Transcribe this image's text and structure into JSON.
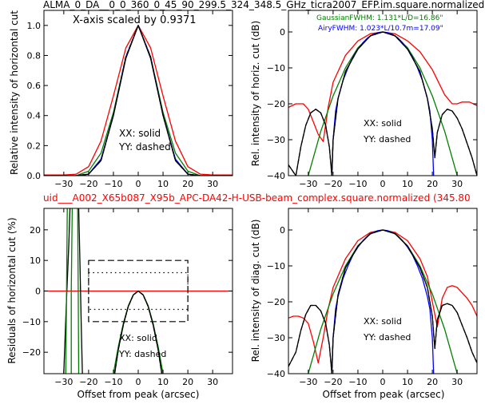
{
  "figure": {
    "top_title": "ALMA_0_DA__0_0_360_0_45_90_299.5_324_348.5_GHz_ticra2007_EFP.im.square.normalized",
    "mid_title": "uid___A002_X65b087_X95b_APC-DA42-H-USB-beam_complex.square.normalized (345.80",
    "top_title_color": "#000000",
    "mid_title_color": "#ff0000"
  },
  "colors": {
    "red": "#ff0000",
    "green": "#008000",
    "blue": "#0000ff",
    "black": "#000000"
  },
  "chart_data": [
    {
      "id": "p1",
      "type": "line",
      "xlabel": "",
      "ylabel": "Relative intensity of horizontal cut",
      "xlim": [
        -38,
        38
      ],
      "ylim": [
        0,
        1.1
      ],
      "xticks": [
        -30,
        -20,
        -10,
        0,
        10,
        20,
        30
      ],
      "yticks": [
        0.0,
        0.2,
        0.4,
        0.6,
        0.8,
        1.0
      ],
      "ytick_labels": [
        "0.0",
        "0.2",
        "0.4",
        "0.6",
        "0.8",
        "1.0"
      ],
      "show_xtick_labels": true,
      "annotation": "X-axis scaled by 0.9371",
      "legend_text": [
        "XX: solid",
        "YY: dashed"
      ],
      "series": [
        {
          "color": "red",
          "x": [
            -38,
            -30,
            -25,
            -20,
            -15,
            -10,
            -5,
            0,
            5,
            10,
            15,
            20,
            25,
            30,
            38
          ],
          "y": [
            0.005,
            0.005,
            0.01,
            0.06,
            0.23,
            0.53,
            0.85,
            1.0,
            0.85,
            0.53,
            0.23,
            0.06,
            0.01,
            0.005,
            0.005
          ]
        },
        {
          "color": "green",
          "x": [
            -38,
            -25,
            -20,
            -15,
            -10,
            -5,
            0,
            5,
            10,
            15,
            20,
            25,
            38
          ],
          "y": [
            0.0,
            0.0,
            0.03,
            0.15,
            0.42,
            0.79,
            1.0,
            0.79,
            0.42,
            0.15,
            0.03,
            0.0,
            0.0
          ]
        },
        {
          "color": "blue",
          "x": [
            -38,
            -25,
            -20,
            -15,
            -10,
            -5,
            0,
            5,
            10,
            15,
            20,
            25,
            38
          ],
          "y": [
            0.0,
            0.0,
            0.01,
            0.11,
            0.4,
            0.79,
            1.0,
            0.79,
            0.4,
            0.11,
            0.01,
            0.0,
            0.0
          ]
        },
        {
          "color": "black",
          "x": [
            -38,
            -25,
            -20,
            -15,
            -10,
            -5,
            0,
            5,
            10,
            15,
            20,
            25,
            38
          ],
          "y": [
            0.0,
            0.0,
            0.01,
            0.1,
            0.4,
            0.78,
            1.0,
            0.78,
            0.4,
            0.1,
            0.01,
            0.0,
            0.0
          ]
        },
        {
          "color": "black",
          "dash": true,
          "x": [
            -38,
            -25,
            -20,
            -15,
            -10,
            -5,
            0,
            5,
            10,
            15,
            20,
            25,
            38
          ],
          "y": [
            0.0,
            0.0,
            0.01,
            0.1,
            0.4,
            0.79,
            1.0,
            0.79,
            0.4,
            0.1,
            0.01,
            0.0,
            0.0
          ]
        }
      ]
    },
    {
      "id": "p2",
      "type": "line",
      "xlabel": "",
      "ylabel": "Rel. intensity of horiz. cut (dB)",
      "xlim": [
        -38,
        38
      ],
      "ylim": [
        -40,
        6
      ],
      "xticks": [
        -30,
        -20,
        -10,
        0,
        10,
        20,
        30
      ],
      "yticks": [
        0,
        -10,
        -20,
        -30,
        -40
      ],
      "ytick_labels": [
        "0",
        "−10",
        "−20",
        "−30",
        "−40"
      ],
      "show_xtick_labels": true,
      "fwhm_labels": [
        {
          "text": "GaussianFWHM: 1.131*L/D=16.86\"",
          "color": "green"
        },
        {
          "text": "AiryFWHM: 1.023*L/10.7m=17.09\"",
          "color": "blue"
        }
      ],
      "legend_text": [
        "XX: solid",
        "YY: dashed"
      ],
      "series": [
        {
          "color": "red",
          "x": [
            -38,
            -35,
            -32,
            -30,
            -28,
            -26,
            -24,
            -22,
            -20,
            -15,
            -10,
            -5,
            0,
            5,
            10,
            15,
            20,
            25,
            28,
            30,
            32,
            35,
            38
          ],
          "y": [
            -21,
            -20,
            -20,
            -21.5,
            -25,
            -28.5,
            -30.5,
            -21,
            -14,
            -6.5,
            -2.5,
            -0.5,
            0,
            -0.5,
            -2.5,
            -5.5,
            -10.5,
            -17.5,
            -20,
            -20,
            -19.5,
            -19.5,
            -20.5
          ]
        },
        {
          "color": "green",
          "x": [
            -30,
            -25,
            -20,
            -15,
            -10,
            -5,
            0,
            5,
            10,
            15,
            20,
            25,
            30
          ],
          "y": [
            -40,
            -27.7,
            -17.8,
            -10,
            -4.4,
            -1.1,
            0,
            -1.1,
            -4.4,
            -10,
            -17.8,
            -27.7,
            -40
          ]
        },
        {
          "color": "blue",
          "x": [
            -20.5,
            -20,
            -19,
            -18,
            -16,
            -14,
            -12,
            -10,
            -8,
            -6,
            -4,
            -2,
            0,
            2,
            4,
            6,
            8,
            10,
            12,
            14,
            16,
            18,
            19,
            20,
            20.5
          ],
          "y": [
            -40,
            -30,
            -22,
            -18.5,
            -13.5,
            -10,
            -7,
            -4.8,
            -3,
            -1.6,
            -0.7,
            -0.2,
            0,
            -0.2,
            -0.7,
            -1.6,
            -3,
            -4.8,
            -7,
            -10,
            -13.5,
            -18.5,
            -22,
            -30,
            -40
          ]
        },
        {
          "color": "black",
          "x": [
            -38,
            -35,
            -33,
            -31,
            -29,
            -27,
            -25,
            -23,
            -21.5,
            -20.5,
            -20,
            -18,
            -15,
            -10,
            -5,
            0,
            5,
            10,
            15,
            18,
            20,
            21,
            22,
            24,
            26,
            28,
            30,
            32,
            34,
            36,
            38
          ],
          "y": [
            -37,
            -40,
            -32,
            -26,
            -22.5,
            -21.5,
            -22.5,
            -26,
            -32,
            -40,
            -30,
            -18.5,
            -11,
            -4.8,
            -1.1,
            0,
            -1.1,
            -4.8,
            -11,
            -18.5,
            -27,
            -35,
            -28,
            -23,
            -21.5,
            -22,
            -24,
            -27,
            -31,
            -35,
            -40
          ]
        },
        {
          "color": "black",
          "dash": true,
          "x": [
            -38,
            -35,
            -33,
            -31,
            -29,
            -27,
            -25,
            -23,
            -21.5,
            -20.5,
            -20,
            -18,
            -15,
            -10,
            -5,
            0,
            5,
            10,
            15,
            18,
            20,
            21,
            22,
            24,
            26,
            28,
            30,
            32,
            34,
            36,
            38
          ],
          "y": [
            -37,
            -40,
            -32,
            -26,
            -22.5,
            -21.5,
            -22.5,
            -26,
            -32,
            -40,
            -30,
            -18.5,
            -11,
            -4.8,
            -1.1,
            0,
            -1.1,
            -4.8,
            -11,
            -18.5,
            -27,
            -35,
            -28,
            -23,
            -21.5,
            -22,
            -24,
            -27,
            -31,
            -35,
            -40
          ]
        }
      ]
    },
    {
      "id": "p3",
      "type": "line",
      "xlabel": "Offset from peak (arcsec)",
      "ylabel": "Residuals of horizontal cut (%)",
      "xlim": [
        -38,
        38
      ],
      "ylim": [
        -27,
        27
      ],
      "xticks": [
        -30,
        -20,
        -10,
        0,
        10,
        20,
        30
      ],
      "yticks": [
        20,
        10,
        0,
        -10,
        -20
      ],
      "ytick_labels": [
        "20",
        "10",
        "0",
        "−10",
        "−20"
      ],
      "show_xtick_labels": true,
      "legend_text": [
        "XX: solid",
        "YY: dashed"
      ],
      "zero_line_color": "red",
      "dashed_box": {
        "x": [
          -20,
          20
        ],
        "y": [
          -10,
          10
        ]
      },
      "dotted_box": {
        "x": [
          -20,
          20
        ],
        "y": [
          -6,
          6
        ]
      },
      "series": [
        {
          "color": "black",
          "x": [
            -30,
            -29,
            -28,
            -27.5
          ],
          "y": [
            -27,
            -5,
            15,
            27
          ]
        },
        {
          "color": "black",
          "x": [
            -24,
            -23.5,
            -23,
            -22.5
          ],
          "y": [
            27,
            10,
            -10,
            -27
          ]
        },
        {
          "color": "green",
          "x": [
            -29.2,
            -28.9,
            -28.6
          ],
          "y": [
            -27,
            0,
            27
          ]
        },
        {
          "color": "green",
          "x": [
            -27,
            -27,
            -26.6
          ],
          "y": [
            -27,
            0,
            27
          ]
        },
        {
          "color": "green",
          "x": [
            -24.4,
            -24.2,
            -24
          ],
          "y": [
            27,
            0,
            -27
          ]
        },
        {
          "color": "green",
          "x": [
            -10,
            -8,
            -6,
            -4,
            -2,
            0,
            2,
            4,
            6,
            8,
            10
          ],
          "y": [
            -27,
            -18,
            -10.5,
            -4.8,
            -1.2,
            0,
            -1.2,
            -4.8,
            -10.5,
            -18,
            -27
          ]
        },
        {
          "color": "black",
          "x": [
            -9.5,
            -8,
            -6,
            -4,
            -2,
            0,
            2,
            4,
            6,
            8,
            9.5
          ],
          "y": [
            -27,
            -19,
            -11,
            -5,
            -1.3,
            0,
            -1.3,
            -5,
            -11,
            -19,
            -27
          ]
        },
        {
          "color": "black",
          "dash": true,
          "x": [
            -9.5,
            -8,
            -6,
            -4,
            -2,
            0,
            2,
            4,
            6,
            8,
            9.5
          ],
          "y": [
            -27,
            -19,
            -11,
            -5,
            -1.3,
            0,
            -1.3,
            -5,
            -11,
            -19,
            -27
          ]
        }
      ]
    },
    {
      "id": "p4",
      "type": "line",
      "xlabel": "Offset from peak (arcsec)",
      "ylabel": "Rel. intensity of diag. cut (dB)",
      "xlim": [
        -38,
        38
      ],
      "ylim": [
        -40,
        6
      ],
      "xticks": [
        -30,
        -20,
        -10,
        0,
        10,
        20,
        30
      ],
      "yticks": [
        0,
        -10,
        -20,
        -30,
        -40
      ],
      "ytick_labels": [
        "0",
        "−10",
        "−20",
        "−30",
        "−40"
      ],
      "show_xtick_labels": true,
      "legend_text": [
        "XX: solid",
        "YY: dashed"
      ],
      "series": [
        {
          "color": "red",
          "x": [
            -38,
            -36,
            -34,
            -32,
            -30,
            -28,
            -26,
            -24,
            -22,
            -20,
            -15,
            -10,
            -5,
            0,
            5,
            10,
            15,
            18,
            20,
            22,
            24,
            26,
            28,
            30,
            32,
            34,
            36,
            38
          ],
          "y": [
            -24.5,
            -24,
            -24,
            -24.5,
            -26,
            -31,
            -37,
            -30,
            -22,
            -16,
            -8,
            -3,
            -0.7,
            0,
            -0.7,
            -3,
            -8,
            -13,
            -20,
            -27,
            -19,
            -16,
            -15.5,
            -16,
            -17.5,
            -19,
            -21,
            -24
          ]
        },
        {
          "color": "green",
          "x": [
            -30,
            -25,
            -20,
            -15,
            -10,
            -5,
            0,
            5,
            10,
            15,
            20,
            25,
            30
          ],
          "y": [
            -40,
            -27.7,
            -17.8,
            -10,
            -4.4,
            -1.1,
            0,
            -1.1,
            -4.4,
            -10,
            -17.8,
            -27.7,
            -40
          ]
        },
        {
          "color": "blue",
          "x": [
            -20.5,
            -20,
            -19,
            -18,
            -16,
            -14,
            -12,
            -10,
            -8,
            -6,
            -4,
            -2,
            0,
            2,
            4,
            6,
            8,
            10,
            12,
            14,
            16,
            18,
            19,
            20,
            20.5
          ],
          "y": [
            -40,
            -30,
            -22,
            -18.5,
            -13.5,
            -10,
            -7,
            -4.8,
            -3,
            -1.6,
            -0.7,
            -0.2,
            0,
            -0.2,
            -0.7,
            -1.6,
            -3,
            -4.8,
            -7,
            -10,
            -13.5,
            -18.5,
            -22,
            -30,
            -40
          ]
        },
        {
          "color": "black",
          "x": [
            -38,
            -35,
            -33,
            -31,
            -29,
            -27,
            -25,
            -23,
            -21.5,
            -20.5,
            -20,
            -18,
            -15,
            -10,
            -5,
            0,
            5,
            10,
            15,
            18,
            20,
            21,
            22,
            24,
            26,
            28,
            30,
            32,
            34,
            36,
            38
          ],
          "y": [
            -38,
            -34,
            -28,
            -23.5,
            -21,
            -21,
            -22.5,
            -26,
            -32,
            -40,
            -30,
            -18,
            -10.5,
            -4.5,
            -1,
            0,
            -1,
            -4.5,
            -10.5,
            -16,
            -24,
            -33,
            -25,
            -21,
            -20.5,
            -21,
            -23,
            -26.5,
            -30,
            -34,
            -37
          ]
        },
        {
          "color": "black",
          "dash": true,
          "x": [
            -38,
            -35,
            -33,
            -31,
            -29,
            -27,
            -25,
            -23,
            -21.5,
            -20.5,
            -20,
            -18,
            -15,
            -10,
            -5,
            0,
            5,
            10,
            15,
            18,
            20,
            21,
            22,
            24,
            26,
            28,
            30,
            32,
            34,
            36,
            38
          ],
          "y": [
            -38,
            -34,
            -28,
            -23.5,
            -21,
            -21,
            -22.5,
            -26,
            -32,
            -40,
            -30,
            -18,
            -10.5,
            -4.5,
            -1,
            0,
            -1,
            -4.5,
            -10.5,
            -16,
            -24,
            -33,
            -25,
            -21,
            -20.5,
            -21,
            -23,
            -26.5,
            -30,
            -34,
            -37
          ]
        }
      ]
    }
  ]
}
